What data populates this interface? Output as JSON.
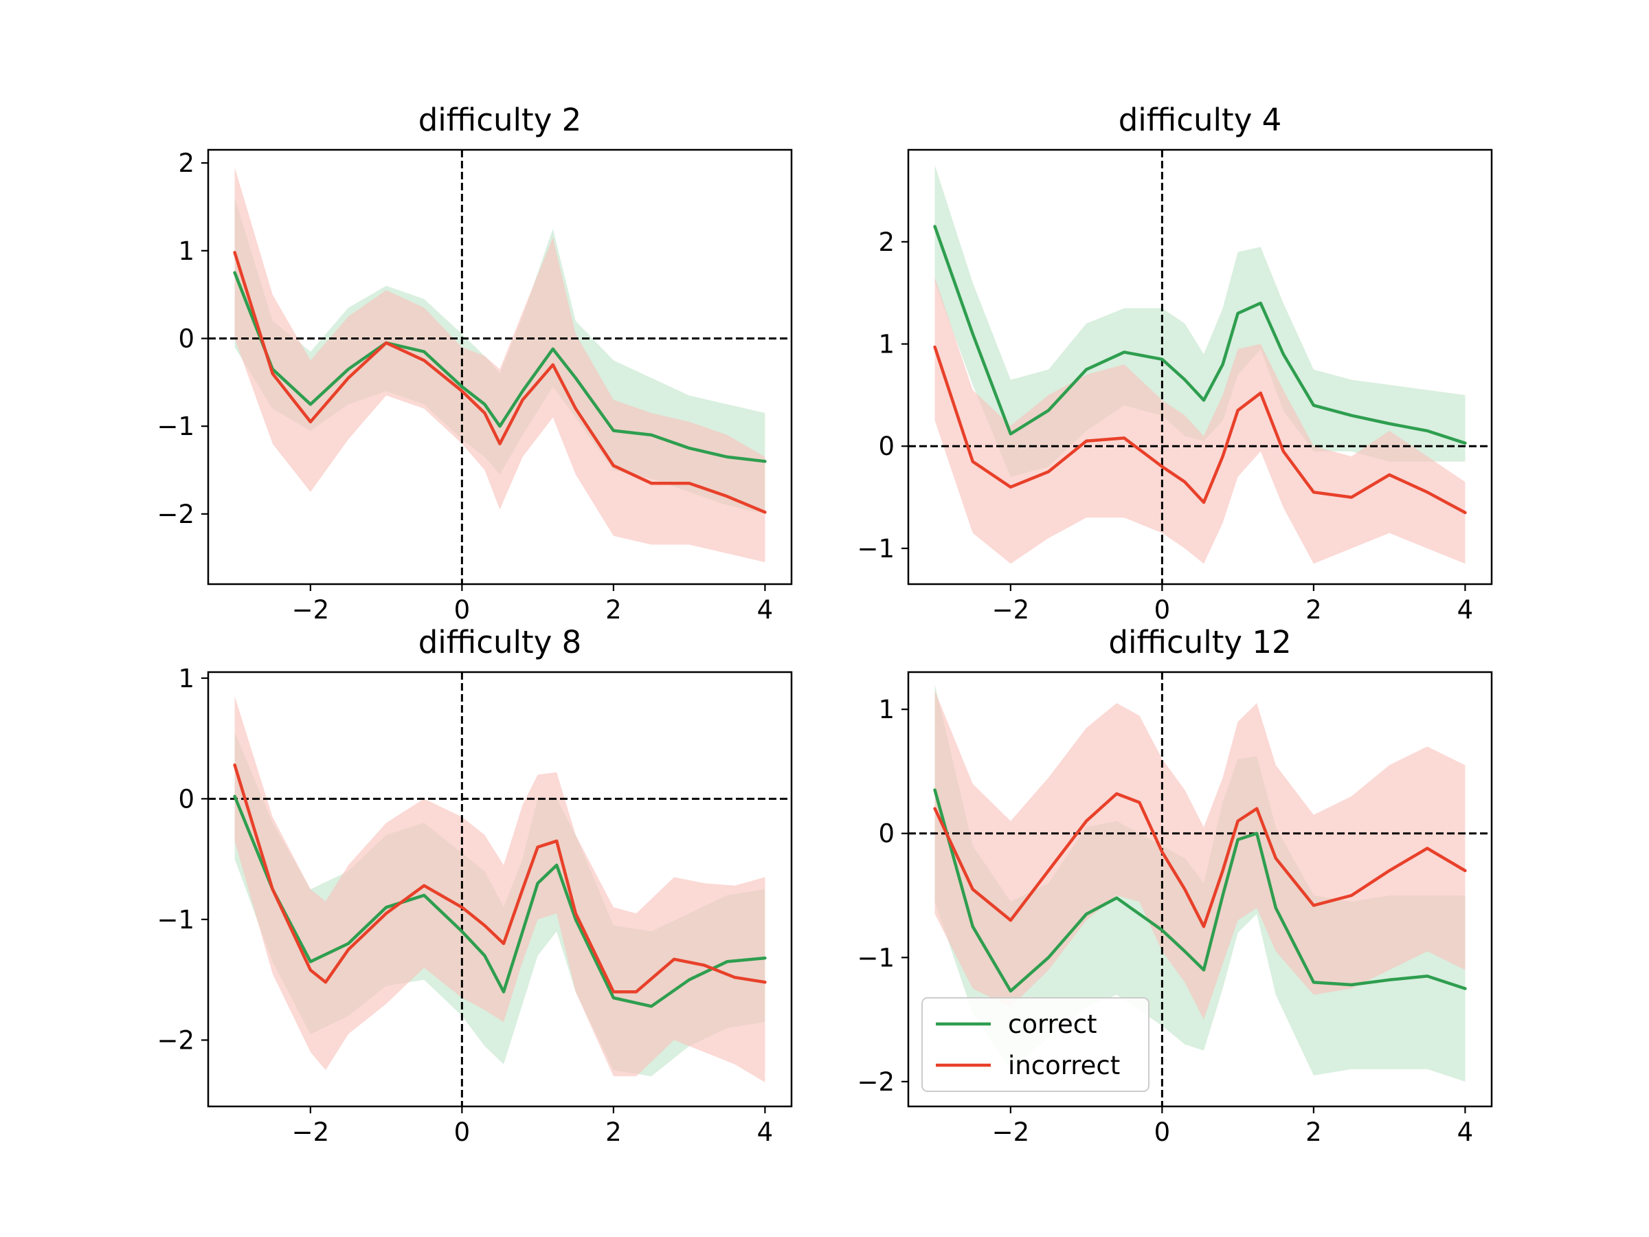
{
  "colors": {
    "correct": "#2e9e4f",
    "incorrect": "#e8402a",
    "correct_band": "#c2e5cb",
    "incorrect_band": "#f9c2bb",
    "overlap_band": "#cbae96",
    "reference_lines": "#000000"
  },
  "legend": {
    "entries": [
      {
        "label": "correct",
        "color": "#2e9e4f"
      },
      {
        "label": "incorrect",
        "color": "#e8402a"
      }
    ],
    "panel": 3,
    "position": "lower-left"
  },
  "chart_data": [
    {
      "type": "line",
      "title": "difficulty 2",
      "xlim": [
        -3.35,
        4.35
      ],
      "ylim": [
        -2.8,
        2.15
      ],
      "xticks": [
        -2,
        0,
        2,
        4
      ],
      "yticks": [
        -2,
        -1,
        0,
        1,
        2
      ],
      "reference_lines": {
        "x": 0,
        "y": 0,
        "style": "dashed"
      },
      "series": [
        {
          "name": "correct",
          "x": [
            -3.0,
            -2.5,
            -2.0,
            -1.5,
            -1.0,
            -0.5,
            0.0,
            0.3,
            0.5,
            0.8,
            1.2,
            1.5,
            2.0,
            2.5,
            3.0,
            3.5,
            4.0
          ],
          "y": [
            0.75,
            -0.35,
            -0.75,
            -0.35,
            -0.05,
            -0.15,
            -0.55,
            -0.75,
            -1.0,
            -0.6,
            -0.12,
            -0.45,
            -1.05,
            -1.1,
            -1.25,
            -1.35,
            -1.4
          ],
          "band_lower": [
            -0.1,
            -0.8,
            -1.05,
            -0.75,
            -0.6,
            -0.75,
            -1.15,
            -1.35,
            -1.55,
            -1.1,
            -0.55,
            -0.9,
            -1.5,
            -1.6,
            -1.75,
            -1.9,
            -2.0
          ],
          "band_upper": [
            1.6,
            0.2,
            -0.15,
            0.35,
            0.6,
            0.45,
            0.05,
            -0.2,
            -0.4,
            0.25,
            1.25,
            0.2,
            -0.25,
            -0.45,
            -0.65,
            -0.75,
            -0.85
          ]
        },
        {
          "name": "incorrect",
          "x": [
            -3.0,
            -2.5,
            -2.0,
            -1.5,
            -1.0,
            -0.5,
            0.0,
            0.3,
            0.5,
            0.8,
            1.2,
            1.5,
            2.0,
            2.5,
            3.0,
            3.5,
            4.0
          ],
          "y": [
            0.98,
            -0.4,
            -0.95,
            -0.45,
            -0.05,
            -0.25,
            -0.6,
            -0.85,
            -1.2,
            -0.7,
            -0.3,
            -0.8,
            -1.45,
            -1.65,
            -1.65,
            -1.8,
            -1.98
          ],
          "band_lower": [
            0.0,
            -1.2,
            -1.75,
            -1.15,
            -0.65,
            -0.8,
            -1.2,
            -1.5,
            -1.95,
            -1.35,
            -0.9,
            -1.55,
            -2.25,
            -2.35,
            -2.35,
            -2.45,
            -2.55
          ],
          "band_upper": [
            1.95,
            0.5,
            -0.25,
            0.25,
            0.55,
            0.35,
            -0.1,
            -0.2,
            -0.35,
            0.3,
            1.15,
            0.05,
            -0.7,
            -0.85,
            -0.95,
            -1.1,
            -1.35
          ]
        }
      ]
    },
    {
      "type": "line",
      "title": "difficulty 4",
      "xlim": [
        -3.35,
        4.35
      ],
      "ylim": [
        -1.35,
        2.9
      ],
      "xticks": [
        -2,
        0,
        2,
        4
      ],
      "yticks": [
        -1,
        0,
        1,
        2
      ],
      "reference_lines": {
        "x": 0,
        "y": 0,
        "style": "dashed"
      },
      "series": [
        {
          "name": "correct",
          "x": [
            -3.0,
            -2.5,
            -2.0,
            -1.5,
            -1.0,
            -0.5,
            0.0,
            0.3,
            0.55,
            0.8,
            1.0,
            1.3,
            1.6,
            2.0,
            2.5,
            3.0,
            3.5,
            4.0
          ],
          "y": [
            2.15,
            1.1,
            0.12,
            0.35,
            0.75,
            0.92,
            0.85,
            0.65,
            0.45,
            0.8,
            1.3,
            1.4,
            0.9,
            0.4,
            0.3,
            0.22,
            0.15,
            0.03
          ],
          "band_lower": [
            1.6,
            0.6,
            -0.3,
            -0.2,
            0.15,
            0.4,
            0.3,
            0.1,
            0.05,
            0.25,
            0.7,
            0.95,
            0.35,
            -0.05,
            -0.05,
            -0.15,
            -0.15,
            -0.15
          ],
          "band_upper": [
            2.75,
            1.6,
            0.65,
            0.75,
            1.2,
            1.35,
            1.35,
            1.2,
            0.9,
            1.35,
            1.9,
            1.95,
            1.4,
            0.75,
            0.65,
            0.6,
            0.55,
            0.5
          ]
        },
        {
          "name": "incorrect",
          "x": [
            -3.0,
            -2.5,
            -2.0,
            -1.5,
            -1.0,
            -0.5,
            0.0,
            0.3,
            0.55,
            0.8,
            1.0,
            1.3,
            1.6,
            2.0,
            2.5,
            3.0,
            3.5,
            4.0
          ],
          "y": [
            0.97,
            -0.15,
            -0.4,
            -0.25,
            0.05,
            0.08,
            -0.2,
            -0.35,
            -0.55,
            -0.1,
            0.35,
            0.52,
            -0.05,
            -0.45,
            -0.5,
            -0.28,
            -0.45,
            -0.65
          ],
          "band_lower": [
            0.25,
            -0.85,
            -1.15,
            -0.9,
            -0.7,
            -0.7,
            -0.85,
            -1.0,
            -1.15,
            -0.75,
            -0.3,
            -0.05,
            -0.6,
            -1.15,
            -1.0,
            -0.85,
            -1.0,
            -1.15
          ],
          "band_upper": [
            1.65,
            0.55,
            0.2,
            0.5,
            0.7,
            0.8,
            0.45,
            0.3,
            0.1,
            0.5,
            0.95,
            1.0,
            0.55,
            0.0,
            -0.1,
            0.15,
            -0.1,
            -0.35
          ]
        }
      ]
    },
    {
      "type": "line",
      "title": "difficulty 8",
      "xlim": [
        -3.35,
        4.35
      ],
      "ylim": [
        -2.55,
        1.05
      ],
      "xticks": [
        -2,
        0,
        2,
        4
      ],
      "yticks": [
        -2,
        -1,
        0,
        1
      ],
      "reference_lines": {
        "x": 0,
        "y": 0,
        "style": "dashed"
      },
      "series": [
        {
          "name": "correct",
          "x": [
            -3.0,
            -2.5,
            -2.0,
            -1.5,
            -1.0,
            -0.5,
            0.0,
            0.3,
            0.55,
            0.8,
            1.0,
            1.25,
            1.5,
            2.0,
            2.5,
            3.0,
            3.5,
            4.0
          ],
          "y": [
            0.02,
            -0.75,
            -1.35,
            -1.2,
            -0.9,
            -0.8,
            -1.1,
            -1.3,
            -1.6,
            -1.1,
            -0.7,
            -0.55,
            -1.0,
            -1.65,
            -1.72,
            -1.5,
            -1.35,
            -1.32
          ],
          "band_lower": [
            -0.5,
            -1.35,
            -1.95,
            -1.8,
            -1.55,
            -1.5,
            -1.8,
            -2.05,
            -2.2,
            -1.7,
            -1.3,
            -1.1,
            -1.6,
            -2.25,
            -2.3,
            -2.05,
            -1.9,
            -1.85
          ],
          "band_upper": [
            0.55,
            -0.2,
            -0.75,
            -0.6,
            -0.3,
            -0.2,
            -0.45,
            -0.6,
            -0.9,
            -0.5,
            0.0,
            0.0,
            -0.3,
            -1.05,
            -1.1,
            -0.95,
            -0.8,
            -0.75
          ]
        },
        {
          "name": "incorrect",
          "x": [
            -3.0,
            -2.5,
            -2.0,
            -1.8,
            -1.5,
            -1.0,
            -0.5,
            0.0,
            0.3,
            0.55,
            0.8,
            1.0,
            1.25,
            1.5,
            2.0,
            2.3,
            2.8,
            3.2,
            3.6,
            4.0
          ],
          "y": [
            0.28,
            -0.75,
            -1.42,
            -1.52,
            -1.25,
            -0.95,
            -0.72,
            -0.9,
            -1.05,
            -1.2,
            -0.75,
            -0.4,
            -0.35,
            -0.95,
            -1.6,
            -1.6,
            -1.33,
            -1.38,
            -1.48,
            -1.52
          ],
          "band_lower": [
            -0.35,
            -1.45,
            -2.1,
            -2.25,
            -1.95,
            -1.7,
            -1.4,
            -1.65,
            -1.75,
            -1.85,
            -1.35,
            -1.0,
            -0.95,
            -1.6,
            -2.3,
            -2.3,
            -2.0,
            -2.1,
            -2.2,
            -2.35
          ],
          "band_upper": [
            0.85,
            -0.15,
            -0.75,
            -0.85,
            -0.55,
            -0.2,
            0.0,
            -0.15,
            -0.3,
            -0.55,
            -0.05,
            0.2,
            0.22,
            -0.3,
            -0.9,
            -0.95,
            -0.65,
            -0.7,
            -0.72,
            -0.65
          ]
        }
      ]
    },
    {
      "type": "line",
      "title": "difficulty 12",
      "xlim": [
        -3.35,
        4.35
      ],
      "ylim": [
        -2.2,
        1.3
      ],
      "xticks": [
        -2,
        0,
        2,
        4
      ],
      "yticks": [
        -2,
        -1,
        0,
        1
      ],
      "reference_lines": {
        "x": 0,
        "y": 0,
        "style": "dashed"
      },
      "series": [
        {
          "name": "correct",
          "x": [
            -3.0,
            -2.5,
            -2.0,
            -1.5,
            -1.0,
            -0.6,
            0.0,
            0.3,
            0.55,
            0.8,
            1.0,
            1.25,
            1.5,
            2.0,
            2.5,
            3.0,
            3.5,
            4.0
          ],
          "y": [
            0.35,
            -0.75,
            -1.27,
            -1.0,
            -0.65,
            -0.52,
            -0.78,
            -0.95,
            -1.1,
            -0.5,
            -0.05,
            0.0,
            -0.6,
            -1.2,
            -1.22,
            -1.18,
            -1.15,
            -1.25
          ],
          "band_lower": [
            -0.55,
            -1.45,
            -1.9,
            -1.65,
            -1.4,
            -1.3,
            -1.55,
            -1.7,
            -1.75,
            -1.25,
            -0.8,
            -0.65,
            -1.3,
            -1.95,
            -1.9,
            -1.9,
            -1.9,
            -2.0
          ],
          "band_upper": [
            1.2,
            -0.1,
            -0.55,
            -0.4,
            0.05,
            0.1,
            -0.1,
            -0.2,
            -0.4,
            0.25,
            0.6,
            0.62,
            0.05,
            -0.5,
            -0.55,
            -0.5,
            -0.5,
            -0.5
          ]
        },
        {
          "name": "incorrect",
          "x": [
            -3.0,
            -2.5,
            -2.0,
            -1.5,
            -1.0,
            -0.6,
            -0.3,
            0.0,
            0.3,
            0.55,
            0.8,
            1.0,
            1.25,
            1.5,
            2.0,
            2.5,
            3.0,
            3.5,
            4.0
          ],
          "y": [
            0.2,
            -0.45,
            -0.7,
            -0.3,
            0.1,
            0.32,
            0.25,
            -0.15,
            -0.45,
            -0.75,
            -0.3,
            0.1,
            0.2,
            -0.2,
            -0.58,
            -0.5,
            -0.3,
            -0.12,
            -0.3
          ],
          "band_lower": [
            -0.65,
            -1.25,
            -1.4,
            -1.1,
            -0.7,
            -0.5,
            -0.55,
            -0.95,
            -1.2,
            -1.5,
            -1.05,
            -0.7,
            -0.6,
            -0.95,
            -1.3,
            -1.25,
            -1.1,
            -0.95,
            -1.1
          ],
          "band_upper": [
            1.15,
            0.4,
            0.1,
            0.45,
            0.85,
            1.05,
            0.95,
            0.6,
            0.35,
            0.05,
            0.45,
            0.9,
            1.05,
            0.55,
            0.15,
            0.3,
            0.55,
            0.7,
            0.55
          ]
        }
      ]
    }
  ]
}
